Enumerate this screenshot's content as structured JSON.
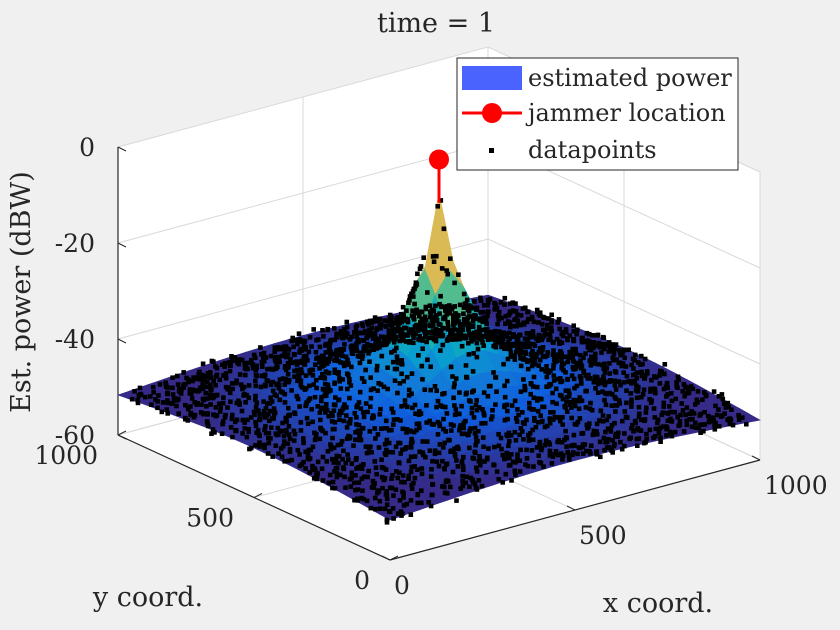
{
  "chart_data": {
    "type": "surface",
    "title": "time = 1",
    "xlabel": "x coord.",
    "ylabel": "y coord.",
    "zlabel": "Est. power (dBW)",
    "xlim": [
      0,
      1000
    ],
    "ylim": [
      0,
      1000
    ],
    "zlim": [
      -60,
      0
    ],
    "xticks": [
      "0",
      "500",
      "1000"
    ],
    "yticks": [
      "0",
      "500",
      "1000"
    ],
    "zticks": [
      "-60",
      "-40",
      "-20",
      "0"
    ],
    "grid": true,
    "legend_position": "top-right",
    "legend": [
      {
        "label": "estimated power",
        "style": "patch",
        "color": "#4a63ff"
      },
      {
        "label": "jammer location",
        "style": "line-marker",
        "color": "#ff0000"
      },
      {
        "label": "datapoints",
        "style": "marker",
        "color": "#000000"
      }
    ],
    "jammer": {
      "x": 500,
      "y": 500,
      "z": 0
    },
    "surface_model": {
      "peak_z": -12,
      "corner_z": -47,
      "edge_mid_z": -44
    },
    "colormap": "parula-like"
  }
}
